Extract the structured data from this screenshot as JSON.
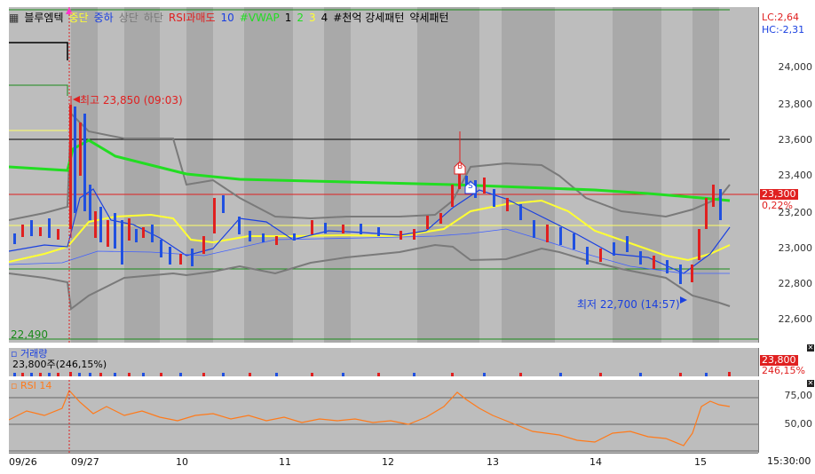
{
  "legend": {
    "stock_name": "블루엠텍",
    "ma_mid": "중단",
    "ma_mid_low": "중하",
    "ma_upper": "상단",
    "ma_lower": "하단",
    "rsi_oversold": "RSI과매도",
    "rsi_period": "10",
    "vwap": "#VWAP",
    "vwap_1": "1",
    "vwap_2": "2",
    "vwap_3": "3",
    "vwap_4": "4",
    "pattern_label": "#천억 강세패턴",
    "weak_pattern": "약세패턴"
  },
  "price_axis": {
    "ticks": [
      "24,000",
      "23,800",
      "23,600",
      "23,400",
      "23,200",
      "23,000",
      "22,800",
      "22,600"
    ],
    "lc": "LC:2,64",
    "hc": "HC:-2,31",
    "current": "23,300",
    "change_pct": "0,22%"
  },
  "annotations": {
    "high": "최고 23,850 (09:03)",
    "low": "최저 22,700 (14:57)",
    "left_low": "22,490",
    "buy_marker": "B",
    "sell_marker": "S"
  },
  "volume": {
    "title": "거래량",
    "summary": "23,800주(246,15%)",
    "axis_value": "23,800",
    "axis_pct": "246,15%"
  },
  "rsi": {
    "title": "RSI 14",
    "ticks": [
      "75,00",
      "50,00"
    ]
  },
  "x_axis": {
    "labels": [
      "09/26",
      "09/27",
      "10",
      "11",
      "12",
      "13",
      "14",
      "15"
    ],
    "time_label": "15:30:00"
  },
  "colors": {
    "up": "#e02020",
    "down": "#2050e0",
    "vwap": "#22dd22",
    "mid_band": "#ffff33",
    "bollinger": "#808080",
    "rsi_line": "#ff7a1a"
  }
}
